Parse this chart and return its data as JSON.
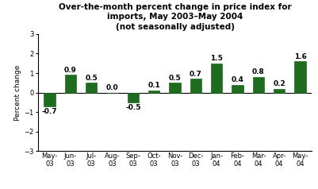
{
  "categories": [
    "May-\n03",
    "Jun-\n03",
    "Jul-\n03",
    "Aug-\n03",
    "Sep-\n03",
    "Oct-\n03",
    "Nov-\n03",
    "Dec-\n03",
    "Jan-\n04",
    "Feb-\n04",
    "Mar-\n04",
    "Apr-\n04",
    "May-\n04"
  ],
  "values": [
    -0.7,
    0.9,
    0.5,
    0.0,
    -0.5,
    0.1,
    0.5,
    0.7,
    1.5,
    0.4,
    0.8,
    0.2,
    1.6
  ],
  "bar_color": "#1f6b1f",
  "title_line1": "Over-the-month percent change in price index for",
  "title_line2": "imports, May 2003–May 2004",
  "title_line3": "(not seasonally adjusted)",
  "ylabel": "Percent change",
  "ylim": [
    -3,
    3
  ],
  "yticks": [
    -3,
    -2,
    -1,
    0,
    1,
    2,
    3
  ],
  "background_color": "#ffffff",
  "title_fontsize": 7.5,
  "label_fontsize": 6.5,
  "tick_fontsize": 6,
  "ylabel_fontsize": 6.5
}
